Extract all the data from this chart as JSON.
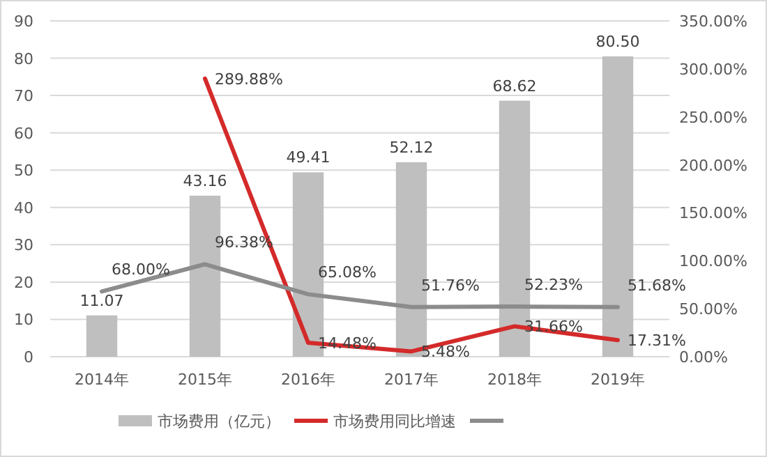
{
  "chart_data": {
    "type": "bar",
    "categories": [
      "2014年",
      "2015年",
      "2016年",
      "2017年",
      "2018年",
      "2019年"
    ],
    "series": [
      {
        "name": "市场费用（亿元）",
        "color": "#bfbfbf",
        "values": [
          11.07,
          43.16,
          49.41,
          52.12,
          68.62,
          80.5
        ],
        "value_labels": [
          "11.07",
          "43.16",
          "49.41",
          "52.12",
          "68.62",
          "80.50"
        ]
      },
      {
        "name": "市场费用同比增速",
        "type": "line",
        "axis": "y2",
        "color": "#d42a2a",
        "values": [
          null,
          289.88,
          14.48,
          5.48,
          31.66,
          17.31
        ],
        "value_labels": [
          null,
          "289.88%",
          "14.48%",
          "5.48%",
          "31.66%",
          "17.31%"
        ]
      },
      {
        "type": "line",
        "axis": "y2",
        "color": "#8c8c8c",
        "values": [
          68.0,
          96.38,
          65.08,
          51.76,
          52.23,
          51.68
        ],
        "value_labels": [
          "68.00%",
          "96.38%",
          "65.08%",
          "51.76%",
          "52.23%",
          "51.68%"
        ]
      }
    ],
    "ylim": [
      0,
      90
    ],
    "yticks": [
      0,
      10,
      20,
      30,
      40,
      50,
      60,
      70,
      80,
      90
    ],
    "y2lim": [
      0,
      350
    ],
    "y2ticks": [
      {
        "value": 0,
        "label": "0.00%"
      },
      {
        "value": 50,
        "label": "50.00%"
      },
      {
        "value": 100,
        "label": "100.00%"
      },
      {
        "value": 150,
        "label": "150.00%"
      },
      {
        "value": 200,
        "label": "200.00%"
      },
      {
        "value": 250,
        "label": "250.00%"
      },
      {
        "value": 300,
        "label": "300.00%"
      },
      {
        "value": 350,
        "label": "350.00%"
      }
    ],
    "grid": "y",
    "legend": "bottom",
    "marker": "none",
    "line_style": "solid"
  }
}
